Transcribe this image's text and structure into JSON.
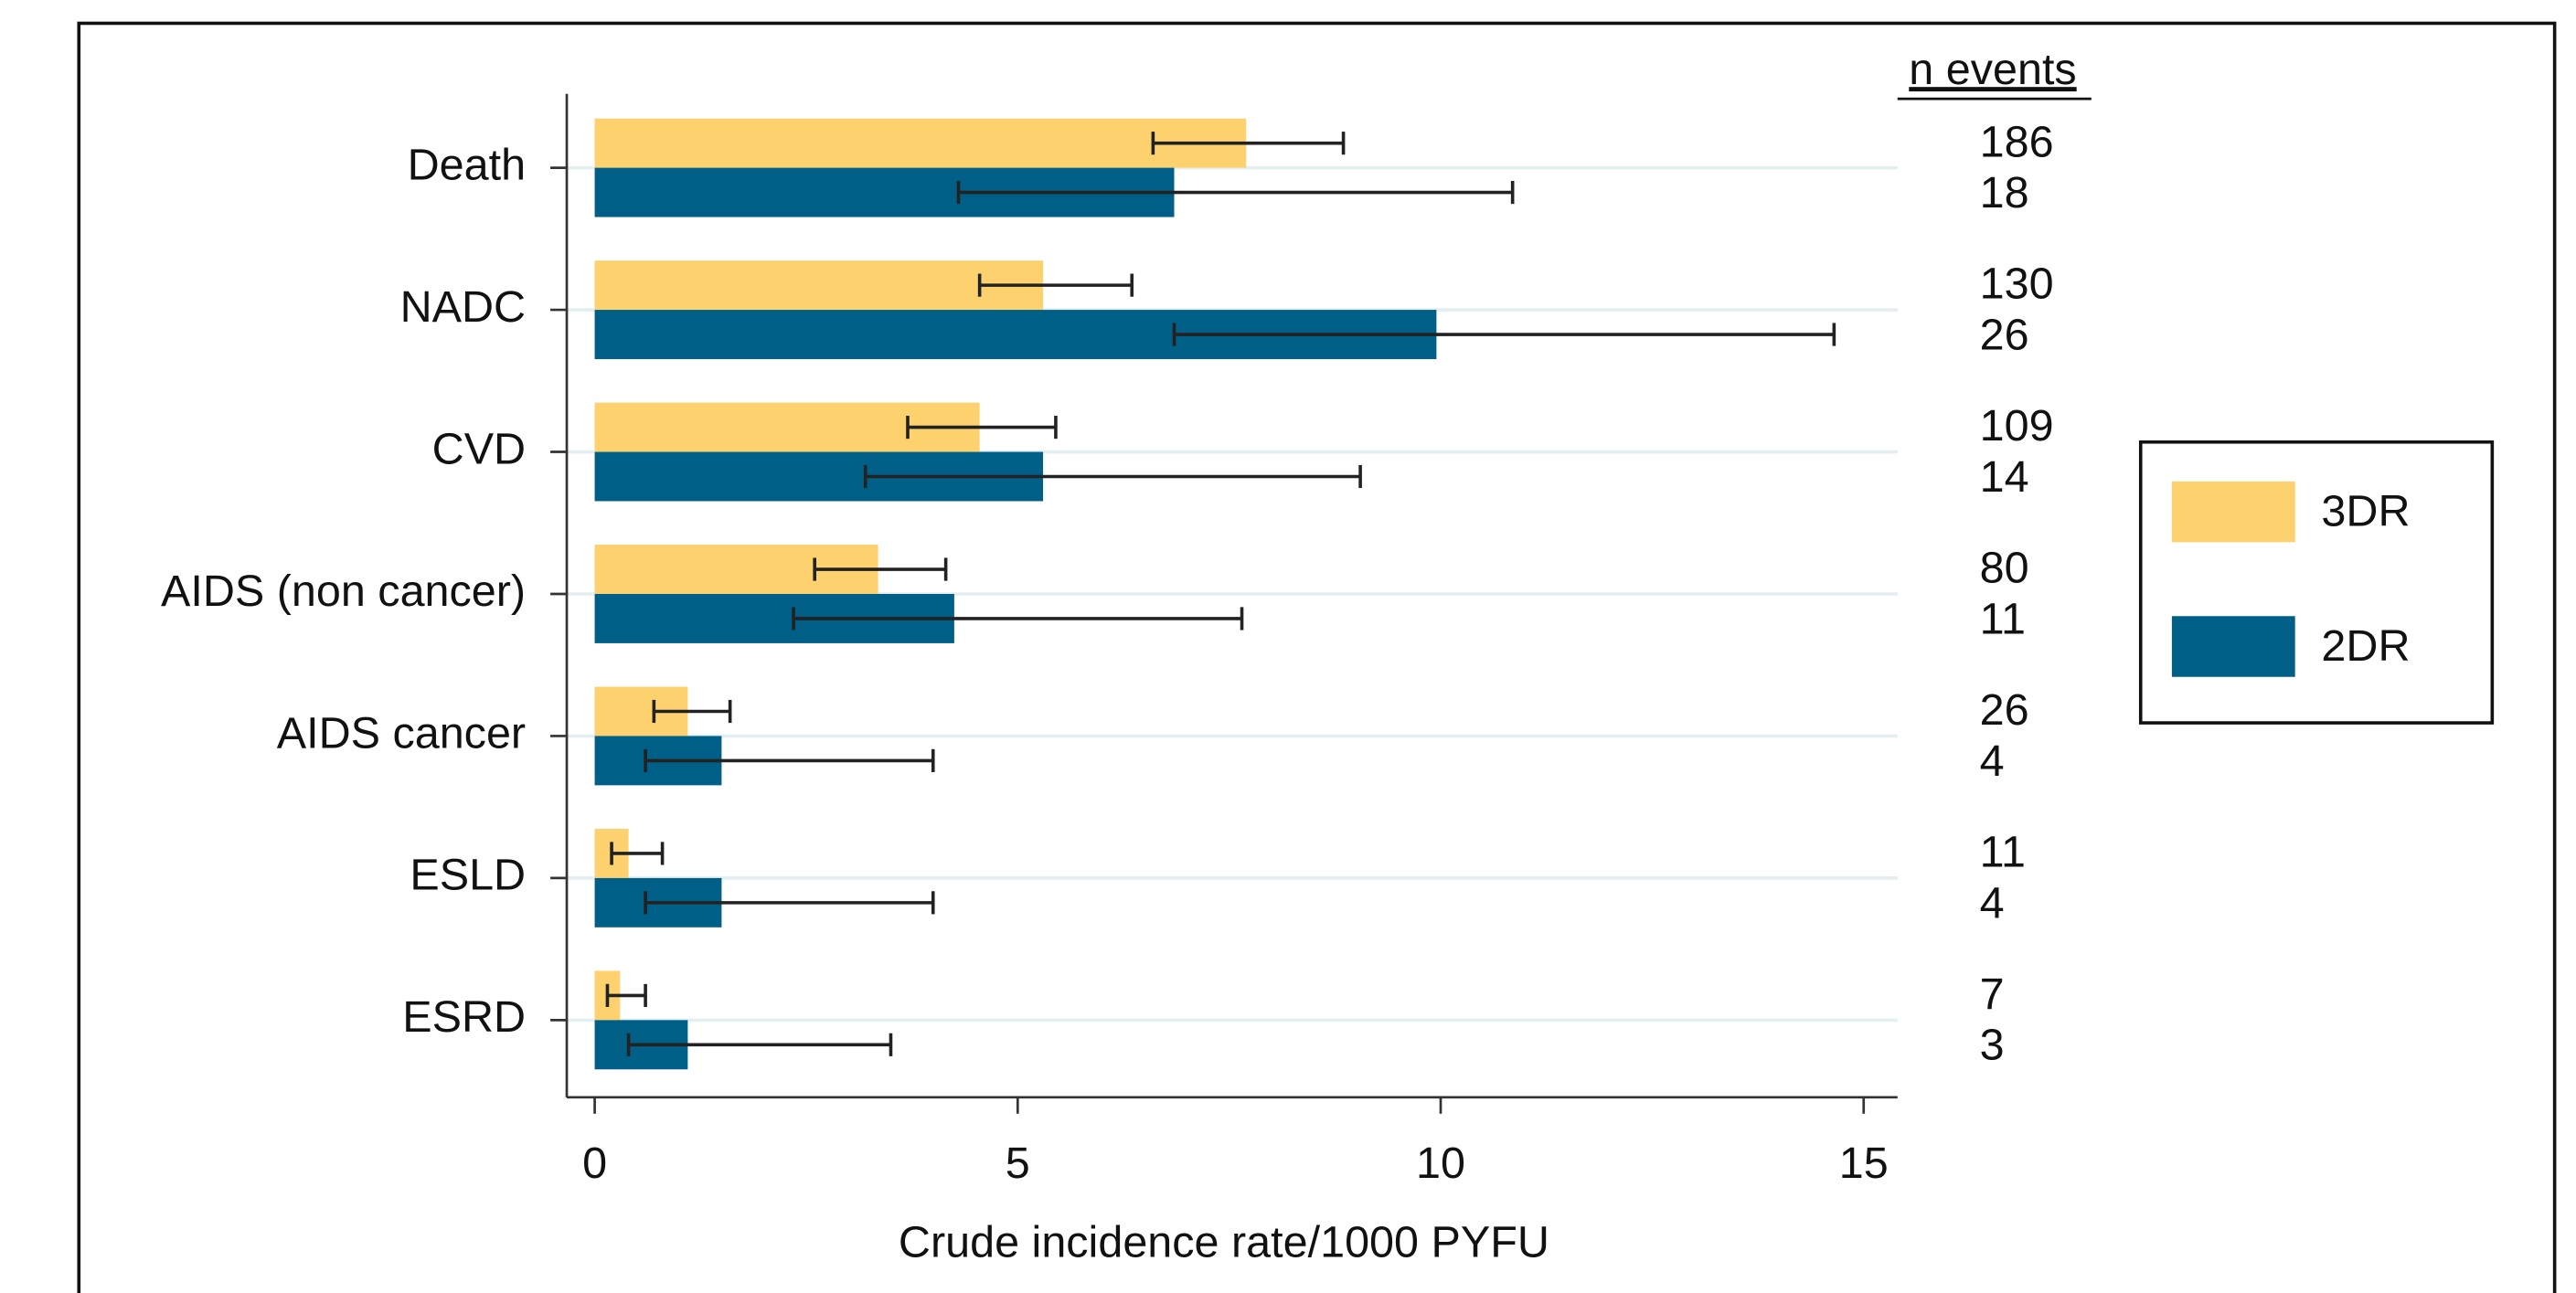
{
  "chart_data": {
    "type": "bar",
    "orientation": "horizontal",
    "categories": [
      "Death",
      "NADC",
      "CVD",
      "AIDS (non cancer)",
      "AIDS cancer",
      "ESLD",
      "ESRD"
    ],
    "series": [
      {
        "name": "3DR",
        "color": "#fdd26e",
        "values": [
          7.7,
          5.3,
          4.55,
          3.35,
          1.1,
          0.4,
          0.3
        ],
        "lower": [
          6.6,
          4.55,
          3.7,
          2.6,
          0.7,
          0.2,
          0.15
        ],
        "upper": [
          8.85,
          6.35,
          5.45,
          4.15,
          1.6,
          0.8,
          0.6
        ],
        "n_events": [
          186,
          130,
          109,
          80,
          26,
          11,
          7
        ]
      },
      {
        "name": "2DR",
        "color": "#005f87",
        "values": [
          6.85,
          9.95,
          5.3,
          4.25,
          1.5,
          1.5,
          1.1
        ],
        "lower": [
          4.3,
          6.85,
          3.2,
          2.35,
          0.6,
          0.6,
          0.4
        ],
        "upper": [
          10.85,
          14.65,
          9.05,
          7.65,
          4.0,
          4.0,
          3.5
        ],
        "n_events": [
          18,
          26,
          14,
          11,
          4,
          4,
          3
        ]
      }
    ],
    "n_events_title": "n events",
    "x_label": "Crude incidence rate/1000 PYFU",
    "xlim": [
      -0.33,
      15.4
    ],
    "xticks": [
      0,
      5,
      10,
      15
    ],
    "grid": true,
    "grid_color": "#e3eef0",
    "legend": "right"
  }
}
